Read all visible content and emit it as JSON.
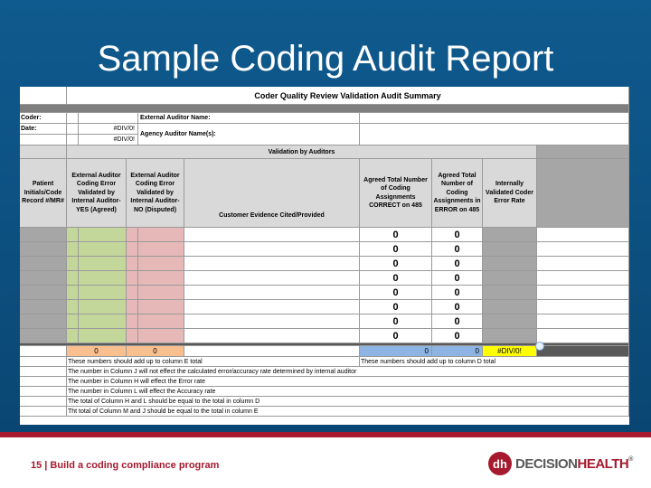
{
  "slide": {
    "title": "Sample Coding Audit Report",
    "footer": "15 | Build a coding compliance program",
    "logo_mark": "dh",
    "logo_text_a": "DECISION",
    "logo_text_b": "HEALTH",
    "logo_reg": "®"
  },
  "sheet": {
    "title": "Coder Quality Review Validation Audit Summary",
    "coder_label": "Coder:",
    "date_label": "Date:",
    "div0": "#DIV/0!",
    "external_auditor_label": "External Auditor Name:",
    "agency_auditor_label": "Agency Auditor Name(s):",
    "validation_header": "Validation by Auditors",
    "headers": {
      "patient": "Patient Initials/Code Record #/MR#",
      "yes": "External Auditor Coding Error Validated by Internal Auditor- YES (Agreed)",
      "no": "External Auditor Coding Error Validated by Internal Auditor-NO (Disputed)",
      "evidence": "Customer Evidence Cited/Provided",
      "correct": "Agreed Total Number of Coding Assignments CORRECT on 485",
      "error": "Agreed Total Number of Coding Assignments in ERROR on 485",
      "rate": "Internally Validated Coder Error Rate"
    },
    "rows": [
      {
        "correct": "0",
        "error": "0"
      },
      {
        "correct": "0",
        "error": "0"
      },
      {
        "correct": "0",
        "error": "0"
      },
      {
        "correct": "0",
        "error": "0"
      },
      {
        "correct": "0",
        "error": "0"
      },
      {
        "correct": "0",
        "error": "0"
      },
      {
        "correct": "0",
        "error": "0"
      },
      {
        "correct": "0",
        "error": "0"
      }
    ],
    "totals": {
      "yes": "0",
      "no": "0",
      "correct": "0",
      "error": "0",
      "rate": "#DIV/0!"
    },
    "notes": [
      "These numbers should add up to column E total",
      "The number in Column J will not effect the calculated error/accuracy rate determined by internal auditor",
      "The number in Column H will effect the Error rate",
      "The number in Column L will effect the Accuracy rate",
      "The total of Column H and L should be equal to the total in column D",
      "Tht total of Column M and J should be equal to the total in column E"
    ],
    "note_right": "These numbers should add up to column D total"
  }
}
